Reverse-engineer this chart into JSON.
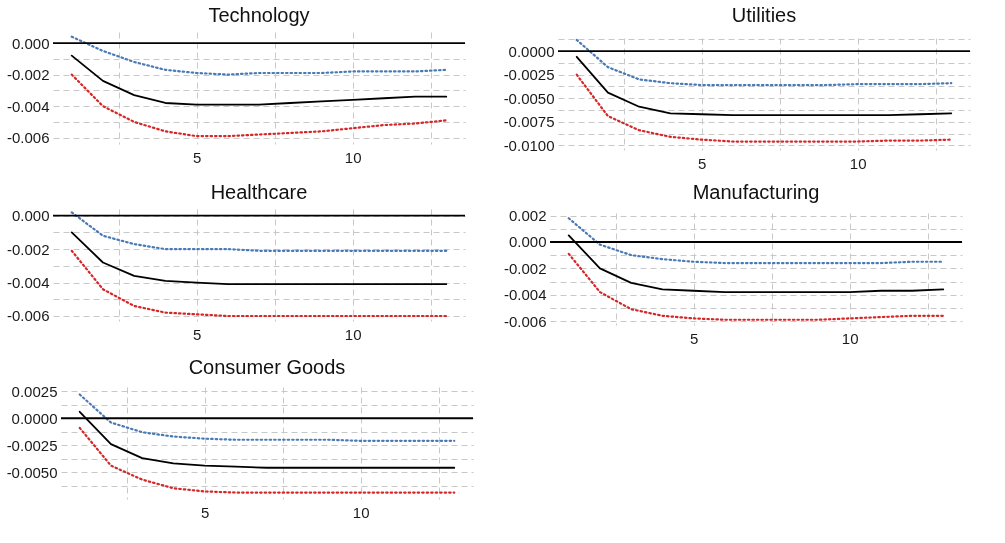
{
  "chart_data": [
    {
      "type": "line",
      "title": "Technology",
      "x": [
        1,
        2,
        3,
        4,
        5,
        6,
        7,
        8,
        9,
        10,
        11,
        12,
        13
      ],
      "xlim": [
        0.4,
        13.6
      ],
      "ylim": [
        -0.0064,
        0.0007
      ],
      "grid": true,
      "xticks": [
        {
          "value": 2.5,
          "label": null
        },
        {
          "value": 5,
          "label": "5"
        },
        {
          "value": 7.5,
          "label": null
        },
        {
          "value": 10,
          "label": "10"
        },
        {
          "value": 12.5,
          "label": null
        }
      ],
      "yticks": [
        {
          "value": -0.006,
          "label": "-0.006"
        },
        {
          "value": -0.005,
          "label": null
        },
        {
          "value": -0.004,
          "label": "-0.004"
        },
        {
          "value": -0.003,
          "label": null
        },
        {
          "value": -0.002,
          "label": "-0.002"
        },
        {
          "value": -0.001,
          "label": null
        },
        {
          "value": 0,
          "label": "0.000"
        }
      ],
      "ref_lines": [
        {
          "axis": "y",
          "value": 0,
          "color": "#000000",
          "line_style": "solid"
        }
      ],
      "series": [
        {
          "color": "#4a7ab5",
          "line_style": "dotted",
          "values": [
            0.0004,
            -0.0005,
            -0.0012,
            -0.0017,
            -0.0019,
            -0.002,
            -0.0019,
            -0.0019,
            -0.0019,
            -0.0018,
            -0.0018,
            -0.0018,
            -0.0017
          ]
        },
        {
          "color": "#000000",
          "line_style": "solid",
          "values": [
            -0.0008,
            -0.0024,
            -0.0033,
            -0.0038,
            -0.0039,
            -0.0039,
            -0.0039,
            -0.0038,
            -0.0037,
            -0.0036,
            -0.0035,
            -0.0034,
            -0.0034
          ]
        },
        {
          "color": "#d62728",
          "line_style": "dotted",
          "values": [
            -0.002,
            -0.004,
            -0.005,
            -0.0056,
            -0.0059,
            -0.0059,
            -0.0058,
            -0.0057,
            -0.0056,
            -0.0054,
            -0.0052,
            -0.0051,
            -0.0049
          ]
        }
      ]
    },
    {
      "type": "line",
      "title": "Utilities",
      "x": [
        1,
        2,
        3,
        4,
        5,
        6,
        7,
        8,
        9,
        10,
        11,
        12,
        13
      ],
      "xlim": [
        0.4,
        13.6
      ],
      "ylim": [
        -0.0105,
        0.0014
      ],
      "grid": true,
      "xticks": [
        {
          "value": 2.5,
          "label": null
        },
        {
          "value": 5,
          "label": "5"
        },
        {
          "value": 7.5,
          "label": null
        },
        {
          "value": 10,
          "label": "10"
        },
        {
          "value": 12.5,
          "label": null
        }
      ],
      "yticks": [
        {
          "value": -0.01,
          "label": "-0.0100"
        },
        {
          "value": -0.00875,
          "label": null
        },
        {
          "value": -0.0075,
          "label": "-0.0075"
        },
        {
          "value": -0.00625,
          "label": null
        },
        {
          "value": -0.005,
          "label": "-0.0050"
        },
        {
          "value": -0.00375,
          "label": null
        },
        {
          "value": -0.0025,
          "label": "-0.0025"
        },
        {
          "value": -0.00125,
          "label": null
        },
        {
          "value": 0,
          "label": "0.0000"
        },
        {
          "value": 0.00125,
          "label": null
        }
      ],
      "ref_lines": [
        {
          "axis": "y",
          "value": 0,
          "color": "#000000",
          "line_style": "solid"
        }
      ],
      "series": [
        {
          "color": "#4a7ab5",
          "line_style": "dotted",
          "values": [
            0.0012,
            -0.0017,
            -0.003,
            -0.0034,
            -0.0036,
            -0.0036,
            -0.0036,
            -0.0036,
            -0.0036,
            -0.0035,
            -0.0035,
            -0.0035,
            -0.0034
          ]
        },
        {
          "color": "#000000",
          "line_style": "solid",
          "values": [
            -0.0006,
            -0.0044,
            -0.0059,
            -0.0066,
            -0.0067,
            -0.0068,
            -0.0068,
            -0.0068,
            -0.0068,
            -0.0068,
            -0.0068,
            -0.0067,
            -0.0066
          ]
        },
        {
          "color": "#d62728",
          "line_style": "dotted",
          "values": [
            -0.0025,
            -0.0069,
            -0.0084,
            -0.0091,
            -0.0094,
            -0.0096,
            -0.0096,
            -0.0096,
            -0.0096,
            -0.0096,
            -0.0095,
            -0.0095,
            -0.0094
          ]
        }
      ]
    },
    {
      "type": "line",
      "title": "Healthcare",
      "x": [
        1,
        2,
        3,
        4,
        5,
        6,
        7,
        8,
        9,
        10,
        11,
        12,
        13
      ],
      "xlim": [
        0.4,
        13.6
      ],
      "ylim": [
        -0.0063,
        0.0004
      ],
      "grid": true,
      "xticks": [
        {
          "value": 2.5,
          "label": null
        },
        {
          "value": 5,
          "label": "5"
        },
        {
          "value": 7.5,
          "label": null
        },
        {
          "value": 10,
          "label": "10"
        },
        {
          "value": 12.5,
          "label": null
        }
      ],
      "yticks": [
        {
          "value": -0.006,
          "label": "-0.006"
        },
        {
          "value": -0.005,
          "label": null
        },
        {
          "value": -0.004,
          "label": "-0.004"
        },
        {
          "value": -0.003,
          "label": null
        },
        {
          "value": -0.002,
          "label": "-0.002"
        },
        {
          "value": -0.001,
          "label": null
        },
        {
          "value": 0,
          "label": "0.000"
        }
      ],
      "ref_lines": [
        {
          "axis": "y",
          "value": 0,
          "color": "#000000",
          "line_style": "solid"
        }
      ],
      "series": [
        {
          "color": "#4a7ab5",
          "line_style": "dotted",
          "values": [
            0.0002,
            -0.0012,
            -0.0017,
            -0.002,
            -0.002,
            -0.002,
            -0.0021,
            -0.0021,
            -0.0021,
            -0.0021,
            -0.0021,
            -0.0021,
            -0.0021
          ]
        },
        {
          "color": "#000000",
          "line_style": "solid",
          "values": [
            -0.001,
            -0.0028,
            -0.0036,
            -0.0039,
            -0.004,
            -0.0041,
            -0.0041,
            -0.0041,
            -0.0041,
            -0.0041,
            -0.0041,
            -0.0041,
            -0.0041
          ]
        },
        {
          "color": "#d62728",
          "line_style": "dotted",
          "values": [
            -0.0021,
            -0.0044,
            -0.0054,
            -0.0058,
            -0.0059,
            -0.006,
            -0.006,
            -0.006,
            -0.006,
            -0.006,
            -0.006,
            -0.006,
            -0.006
          ]
        }
      ]
    },
    {
      "type": "line",
      "title": "Manufacturing",
      "x": [
        1,
        2,
        3,
        4,
        5,
        6,
        7,
        8,
        9,
        10,
        11,
        12,
        13
      ],
      "xlim": [
        0.4,
        13.6
      ],
      "ylim": [
        -0.0063,
        0.0022
      ],
      "grid": true,
      "xticks": [
        {
          "value": 2.5,
          "label": null
        },
        {
          "value": 5,
          "label": "5"
        },
        {
          "value": 7.5,
          "label": null
        },
        {
          "value": 10,
          "label": "10"
        },
        {
          "value": 12.5,
          "label": null
        }
      ],
      "yticks": [
        {
          "value": -0.006,
          "label": "-0.006"
        },
        {
          "value": -0.005,
          "label": null
        },
        {
          "value": -0.004,
          "label": "-0.004"
        },
        {
          "value": -0.003,
          "label": null
        },
        {
          "value": -0.002,
          "label": "-0.002"
        },
        {
          "value": -0.001,
          "label": null
        },
        {
          "value": 0,
          "label": "0.000"
        },
        {
          "value": 0.001,
          "label": null
        },
        {
          "value": 0.002,
          "label": "0.002"
        }
      ],
      "ref_lines": [
        {
          "axis": "y",
          "value": 0,
          "color": "#000000",
          "line_style": "solid"
        }
      ],
      "series": [
        {
          "color": "#4a7ab5",
          "line_style": "dotted",
          "values": [
            0.0018,
            -0.0002,
            -0.001,
            -0.0013,
            -0.0015,
            -0.0016,
            -0.0016,
            -0.0016,
            -0.0016,
            -0.0016,
            -0.0016,
            -0.0015,
            -0.0015
          ]
        },
        {
          "color": "#000000",
          "line_style": "solid",
          "values": [
            0.0005,
            -0.002,
            -0.0031,
            -0.0036,
            -0.0037,
            -0.0038,
            -0.0038,
            -0.0038,
            -0.0038,
            -0.0038,
            -0.0037,
            -0.0037,
            -0.0036
          ]
        },
        {
          "color": "#d62728",
          "line_style": "dotted",
          "values": [
            -0.0009,
            -0.0038,
            -0.0051,
            -0.0056,
            -0.0058,
            -0.0059,
            -0.0059,
            -0.0059,
            -0.0059,
            -0.0058,
            -0.0057,
            -0.0056,
            -0.0056
          ]
        }
      ]
    },
    {
      "type": "line",
      "title": "Consumer Goods",
      "x": [
        1,
        2,
        3,
        4,
        5,
        6,
        7,
        8,
        9,
        10,
        11,
        12,
        13
      ],
      "xlim": [
        0.4,
        13.6
      ],
      "ylim": [
        -0.0075,
        0.0029
      ],
      "grid": true,
      "xticks": [
        {
          "value": 2.5,
          "label": null
        },
        {
          "value": 5,
          "label": "5"
        },
        {
          "value": 7.5,
          "label": null
        },
        {
          "value": 10,
          "label": "10"
        },
        {
          "value": 12.5,
          "label": null
        }
      ],
      "yticks": [
        {
          "value": -0.00625,
          "label": null
        },
        {
          "value": -0.005,
          "label": "-0.0050"
        },
        {
          "value": -0.00375,
          "label": null
        },
        {
          "value": -0.0025,
          "label": "-0.0025"
        },
        {
          "value": -0.00125,
          "label": null
        },
        {
          "value": 0,
          "label": "0.0000"
        },
        {
          "value": 0.00125,
          "label": null
        },
        {
          "value": 0.0025,
          "label": "0.0025"
        }
      ],
      "ref_lines": [
        {
          "axis": "y",
          "value": 0,
          "color": "#000000",
          "line_style": "solid"
        }
      ],
      "series": [
        {
          "color": "#4a7ab5",
          "line_style": "dotted",
          "values": [
            0.0022,
            -0.0004,
            -0.0013,
            -0.0017,
            -0.0019,
            -0.002,
            -0.002,
            -0.002,
            -0.002,
            -0.0021,
            -0.0021,
            -0.0021,
            -0.0021
          ]
        },
        {
          "color": "#000000",
          "line_style": "solid",
          "values": [
            0.0006,
            -0.0024,
            -0.0037,
            -0.0042,
            -0.0044,
            -0.0045,
            -0.0046,
            -0.0046,
            -0.0046,
            -0.0046,
            -0.0046,
            -0.0046,
            -0.0046
          ]
        },
        {
          "color": "#d62728",
          "line_style": "dotted",
          "values": [
            -0.0009,
            -0.0044,
            -0.0057,
            -0.0065,
            -0.0068,
            -0.0069,
            -0.0069,
            -0.0069,
            -0.0069,
            -0.0069,
            -0.0069,
            -0.0069,
            -0.0069
          ]
        }
      ]
    }
  ]
}
